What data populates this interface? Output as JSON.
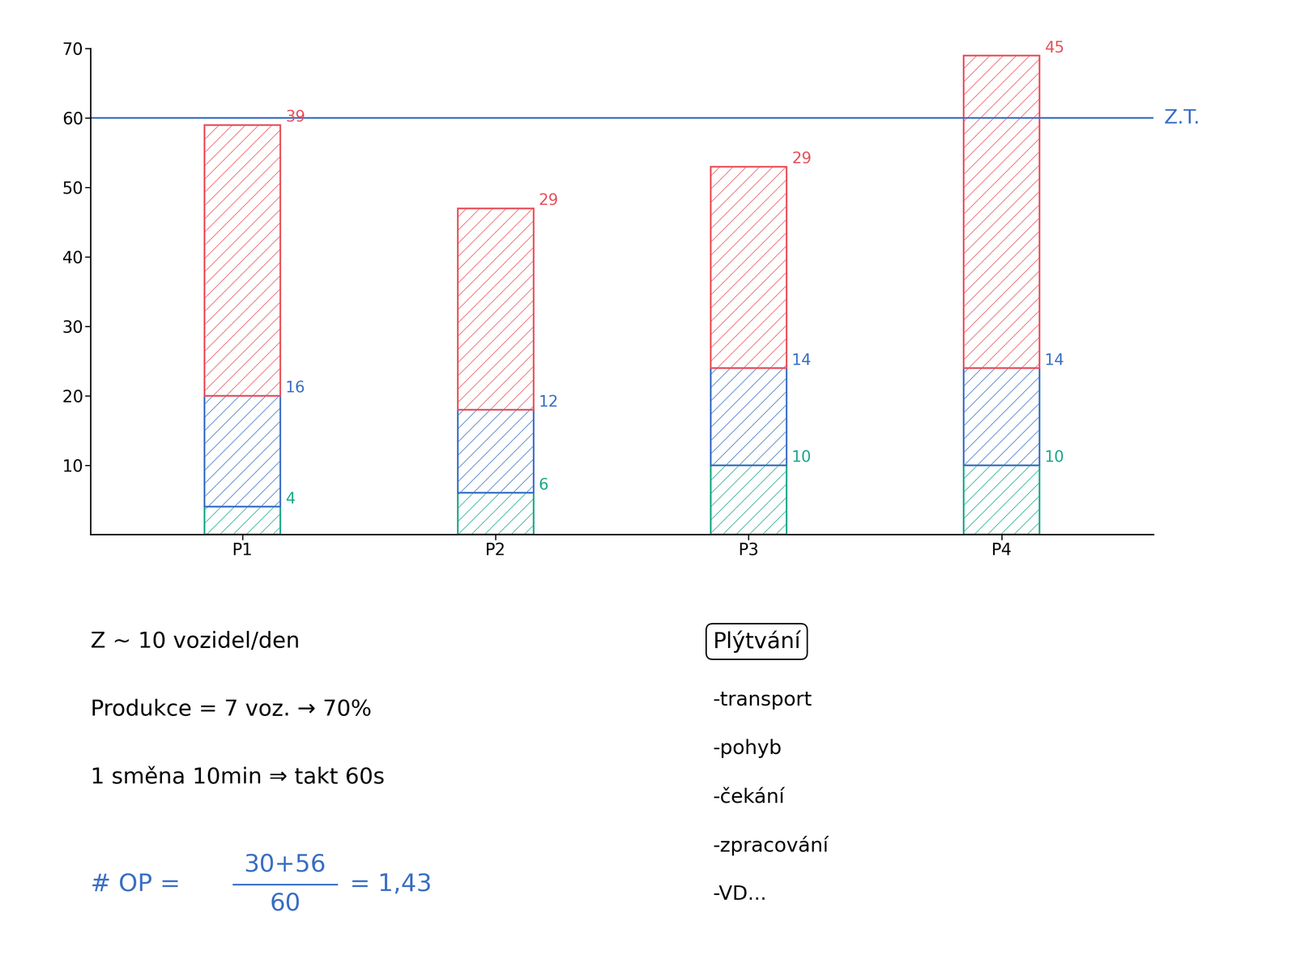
{
  "chart_data": {
    "type": "bar",
    "stacked": true,
    "data_labels": true,
    "categories": [
      "P1",
      "P2",
      "P3",
      "P4"
    ],
    "series": [
      {
        "color": "#1aa88a",
        "values": [
          4,
          6,
          10,
          10
        ]
      },
      {
        "color": "#3a6fc4",
        "values": [
          16,
          12,
          14,
          14
        ]
      },
      {
        "color": "#e8505b",
        "values": [
          39,
          29,
          29,
          45
        ]
      }
    ],
    "ylim": [
      0,
      70
    ],
    "yticks": [
      10,
      20,
      30,
      40,
      50,
      60,
      70
    ],
    "grid": false,
    "takt_line": {
      "value": 60,
      "label": "Z.T.",
      "color": "#3a6fc4"
    }
  },
  "notes": {
    "lines": [
      "Z ~ 10 vozidel/den",
      "Produkce = 7 voz. → 70%",
      "1 směna 10min ⇒ takt 60s"
    ],
    "waste": {
      "title": "Plýtvání",
      "items": [
        "-transport",
        "-pohyb",
        "-čekání",
        "-zpracování",
        "-VD..."
      ]
    },
    "formula": {
      "prefix": "# OP =",
      "numerator": "30+56",
      "denominator": "60",
      "result": "= 1,43",
      "color": "#3a6fc4"
    }
  }
}
